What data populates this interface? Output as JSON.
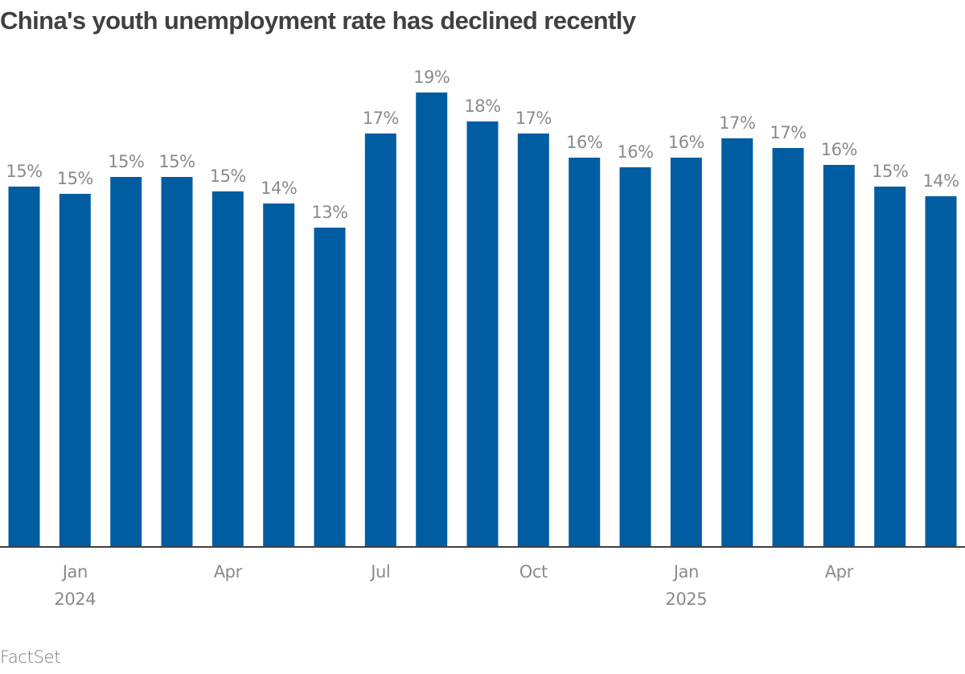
{
  "chart_data": {
    "type": "bar",
    "title": "China's youth unemployment rate has declined recently",
    "xlabel": "",
    "ylabel": "",
    "ylim": [
      0,
      22.5
    ],
    "grid": false,
    "categories": [
      "Dec 2023",
      "Jan 2024",
      "Feb 2024",
      "Mar 2024",
      "Apr 2024",
      "May 2024",
      "Jun 2024",
      "Jul 2024",
      "Aug 2024",
      "Sep 2024",
      "Oct 2024",
      "Nov 2024",
      "Dec 2024",
      "Jan 2025",
      "Feb 2025",
      "Mar 2025",
      "Apr 2025",
      "May 2025",
      "Jun 2025"
    ],
    "values": [
      14.9,
      14.6,
      15.3,
      15.3,
      14.7,
      14.2,
      13.2,
      17.1,
      18.8,
      17.6,
      17.1,
      16.1,
      15.7,
      16.1,
      16.9,
      16.5,
      15.8,
      14.9,
      14.5
    ],
    "data_labels": [
      "15%",
      "15%",
      "15%",
      "15%",
      "15%",
      "14%",
      "13%",
      "17%",
      "19%",
      "18%",
      "17%",
      "16%",
      "16%",
      "16%",
      "17%",
      "17%",
      "16%",
      "15%",
      "14%"
    ],
    "x_ticks": [
      {
        "index": 1,
        "label": "Jan",
        "sublabel": "2024"
      },
      {
        "index": 4,
        "label": "Apr",
        "sublabel": ""
      },
      {
        "index": 7,
        "label": "Jul",
        "sublabel": ""
      },
      {
        "index": 10,
        "label": "Oct",
        "sublabel": ""
      },
      {
        "index": 13,
        "label": "Jan",
        "sublabel": "2025"
      },
      {
        "index": 16,
        "label": "Apr",
        "sublabel": ""
      }
    ],
    "bar_color": "#005da2",
    "label_color": "#8a8a8a",
    "axis_color": "#404040"
  },
  "source": "FactSet"
}
